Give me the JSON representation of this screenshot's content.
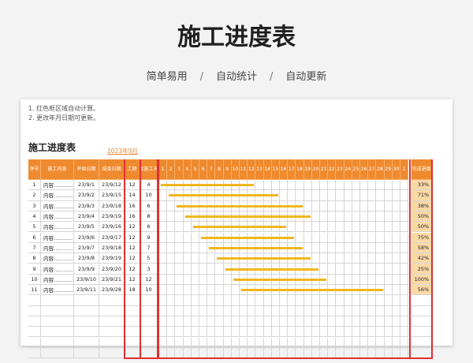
{
  "header": {
    "title": "施工进度表",
    "features": [
      "简单易用",
      "自动统计",
      "自动更新"
    ],
    "separator": "/"
  },
  "notes": [
    "1. 红色框区域自动计算。",
    "2. 更改年月日期可更新。"
  ],
  "sheet": {
    "title": "施工进度表",
    "month": "2023年9月"
  },
  "columns": {
    "seq": "序号",
    "content": "施工内容",
    "start": "开始日期",
    "end": "结束日期",
    "duration": "工期",
    "actual": "实际施工天数",
    "done": "完成进度"
  },
  "days": [
    "1",
    "2",
    "3",
    "4",
    "5",
    "6",
    "7",
    "8",
    "9",
    "10",
    "11",
    "12",
    "13",
    "14",
    "15",
    "16",
    "17",
    "18",
    "19",
    "20",
    "21",
    "22",
    "23",
    "24",
    "25",
    "26",
    "27",
    "28",
    "29",
    "30",
    "1"
  ],
  "rows": [
    {
      "seq": "1",
      "content": "内容……………",
      "start": "23/9/1",
      "end": "23/9/12",
      "duration": "12",
      "actual": "4",
      "pct": "33%",
      "done_fraction": 0.33,
      "startDay": 1,
      "endDay": 12
    },
    {
      "seq": "2",
      "content": "内容……………",
      "start": "23/9/2",
      "end": "23/9/15",
      "duration": "14",
      "actual": "10",
      "pct": "71%",
      "done_fraction": 0.71,
      "startDay": 2,
      "endDay": 15
    },
    {
      "seq": "3",
      "content": "内容……………",
      "start": "23/9/3",
      "end": "23/9/18",
      "duration": "16",
      "actual": "6",
      "pct": "38%",
      "done_fraction": 0.38,
      "startDay": 3,
      "endDay": 18
    },
    {
      "seq": "4",
      "content": "内容……………",
      "start": "23/9/4",
      "end": "23/9/19",
      "duration": "16",
      "actual": "8",
      "pct": "50%",
      "done_fraction": 0.5,
      "startDay": 4,
      "endDay": 19
    },
    {
      "seq": "5",
      "content": "内容……………",
      "start": "23/9/5",
      "end": "23/9/16",
      "duration": "12",
      "actual": "6",
      "pct": "50%",
      "done_fraction": 0.5,
      "startDay": 5,
      "endDay": 16
    },
    {
      "seq": "6",
      "content": "内容……………",
      "start": "23/9/6",
      "end": "23/9/17",
      "duration": "12",
      "actual": "9",
      "pct": "75%",
      "done_fraction": 0.75,
      "startDay": 6,
      "endDay": 17
    },
    {
      "seq": "7",
      "content": "内容……………",
      "start": "23/9/7",
      "end": "23/9/18",
      "duration": "12",
      "actual": "7",
      "pct": "58%",
      "done_fraction": 0.58,
      "startDay": 7,
      "endDay": 18
    },
    {
      "seq": "8",
      "content": "内容……………",
      "start": "23/9/8",
      "end": "23/9/19",
      "duration": "12",
      "actual": "5",
      "pct": "42%",
      "done_fraction": 0.42,
      "startDay": 8,
      "endDay": 19
    },
    {
      "seq": "9",
      "content": "内容……………",
      "start": "23/9/9",
      "end": "23/9/20",
      "duration": "12",
      "actual": "3",
      "pct": "25%",
      "done_fraction": 0.25,
      "startDay": 9,
      "endDay": 20
    },
    {
      "seq": "10",
      "content": "内容……………",
      "start": "23/9/10",
      "end": "23/9/21",
      "duration": "12",
      "actual": "12",
      "pct": "100%",
      "done_fraction": 1.0,
      "startDay": 10,
      "endDay": 21
    },
    {
      "seq": "11",
      "content": "内容……………",
      "start": "23/9/11",
      "end": "23/9/28",
      "duration": "18",
      "actual": "10",
      "pct": "56%",
      "done_fraction": 0.56,
      "startDay": 11,
      "endDay": 28
    }
  ],
  "empty_rows": 6,
  "colors": {
    "header": "#ef8a2e",
    "bar": "#f1b61f",
    "pct_fill": "#fbd9a6",
    "frame": "#e03030",
    "month": "#e8822a"
  }
}
